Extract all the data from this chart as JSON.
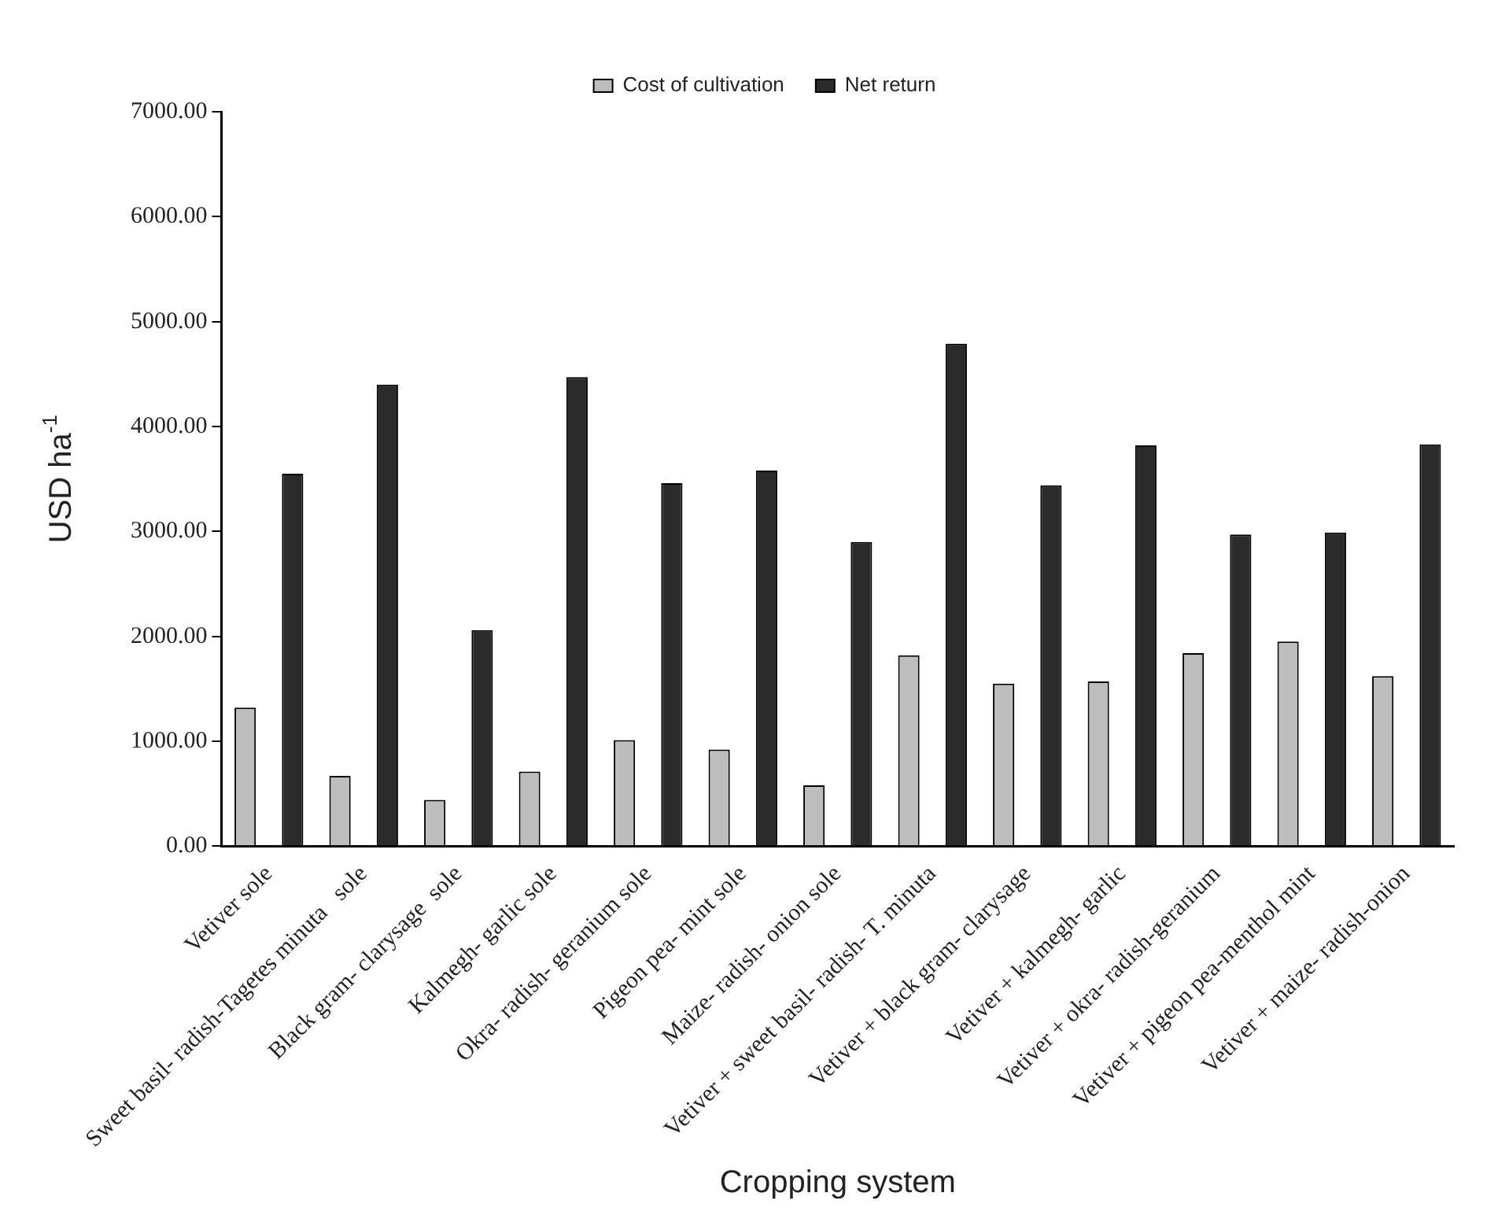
{
  "chart_data": {
    "type": "bar",
    "xlabel": "Cropping system",
    "ylabel": "USD ha$^{-1}$",
    "categories": [
      "Vetiver sole",
      "Sweet basil- radish-Tagetes minuta   sole",
      "Black gram- clarysage  sole",
      "Kalmegh- garlic sole",
      "Okra- radish- geranium sole",
      "Pigeon pea- mint sole",
      "Maize- radish- onion sole",
      "Vetiver + sweet basil- radish- T. minuta",
      "Vetiver + black gram- clarysage",
      "Vetiver + kalmegh- garlic",
      "Vetiver + okra- radish-geranium",
      "Vetiver + pigeon pea-menthol mint",
      "Vetiver + maize- radish-onion"
    ],
    "series": [
      {
        "name": "Cost of cultivation",
        "color": "#bdbdbd",
        "values": [
          1320,
          670,
          440,
          710,
          1010,
          920,
          580,
          1820,
          1550,
          1570,
          1840,
          1950,
          1620
        ]
      },
      {
        "name": "Net return",
        "color": "#2b2b2b",
        "values": [
          3550,
          4400,
          2060,
          4470,
          3460,
          3580,
          2900,
          4790,
          3440,
          3820,
          2970,
          2990,
          3830
        ]
      }
    ],
    "ylim": [
      0,
      7000
    ],
    "yticks": [
      {
        "value": 0,
        "label": "0.00"
      },
      {
        "value": 1000,
        "label": "1000.00"
      },
      {
        "value": 2000,
        "label": "2000.00"
      },
      {
        "value": 3000,
        "label": "3000.00"
      },
      {
        "value": 4000,
        "label": "4000.00"
      },
      {
        "value": 5000,
        "label": "5000.00"
      },
      {
        "value": 6000,
        "label": "6000.00"
      },
      {
        "value": 7000,
        "label": "7000.00"
      }
    ],
    "grid": false,
    "legend": "top"
  }
}
